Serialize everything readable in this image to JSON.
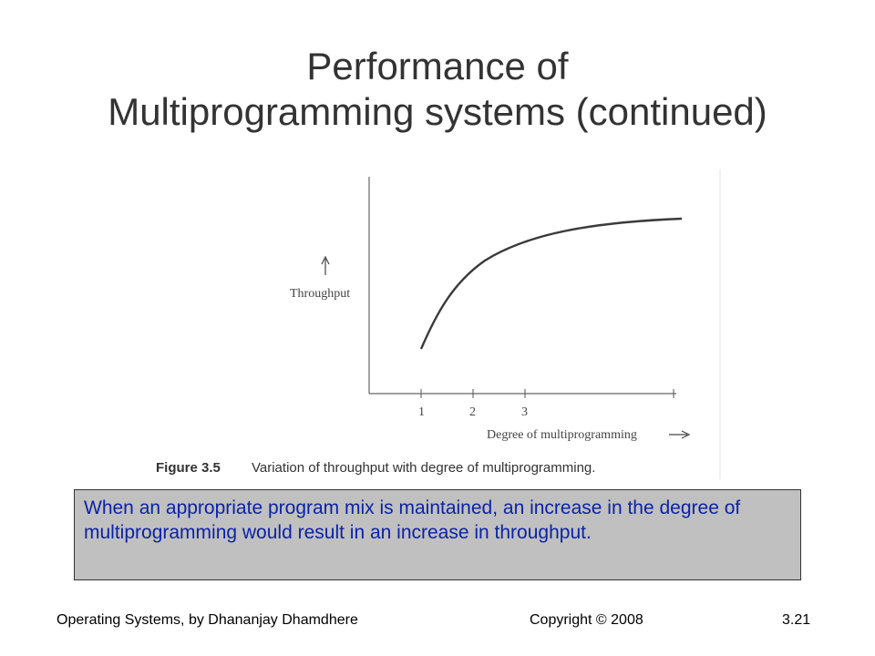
{
  "slide": {
    "title_line1": "Performance of",
    "title_line2": "Multiprogramming systems (continued)"
  },
  "figure": {
    "ylabel": "Throughput",
    "xlabel": "Degree of multiprogramming",
    "x_ticks": [
      "1",
      "2",
      "3"
    ],
    "caption_label": "Figure 3.5",
    "caption_text": "Variation of throughput with degree of multiprogramming."
  },
  "chart_data": {
    "type": "line",
    "xlabel": "Degree of multiprogramming",
    "ylabel": "Throughput",
    "tick_labels": [
      "1",
      "2",
      "3"
    ],
    "grid": false,
    "curve": "increasing, saturating"
  },
  "callout": {
    "text": "When an appropriate program mix is maintained, an increase in the degree of multiprogramming would result in an increase in throughput."
  },
  "footer": {
    "left": "Operating Systems, by Dhananjay Dhamdhere",
    "center": "Copyright © 2008",
    "right": "3.21"
  }
}
